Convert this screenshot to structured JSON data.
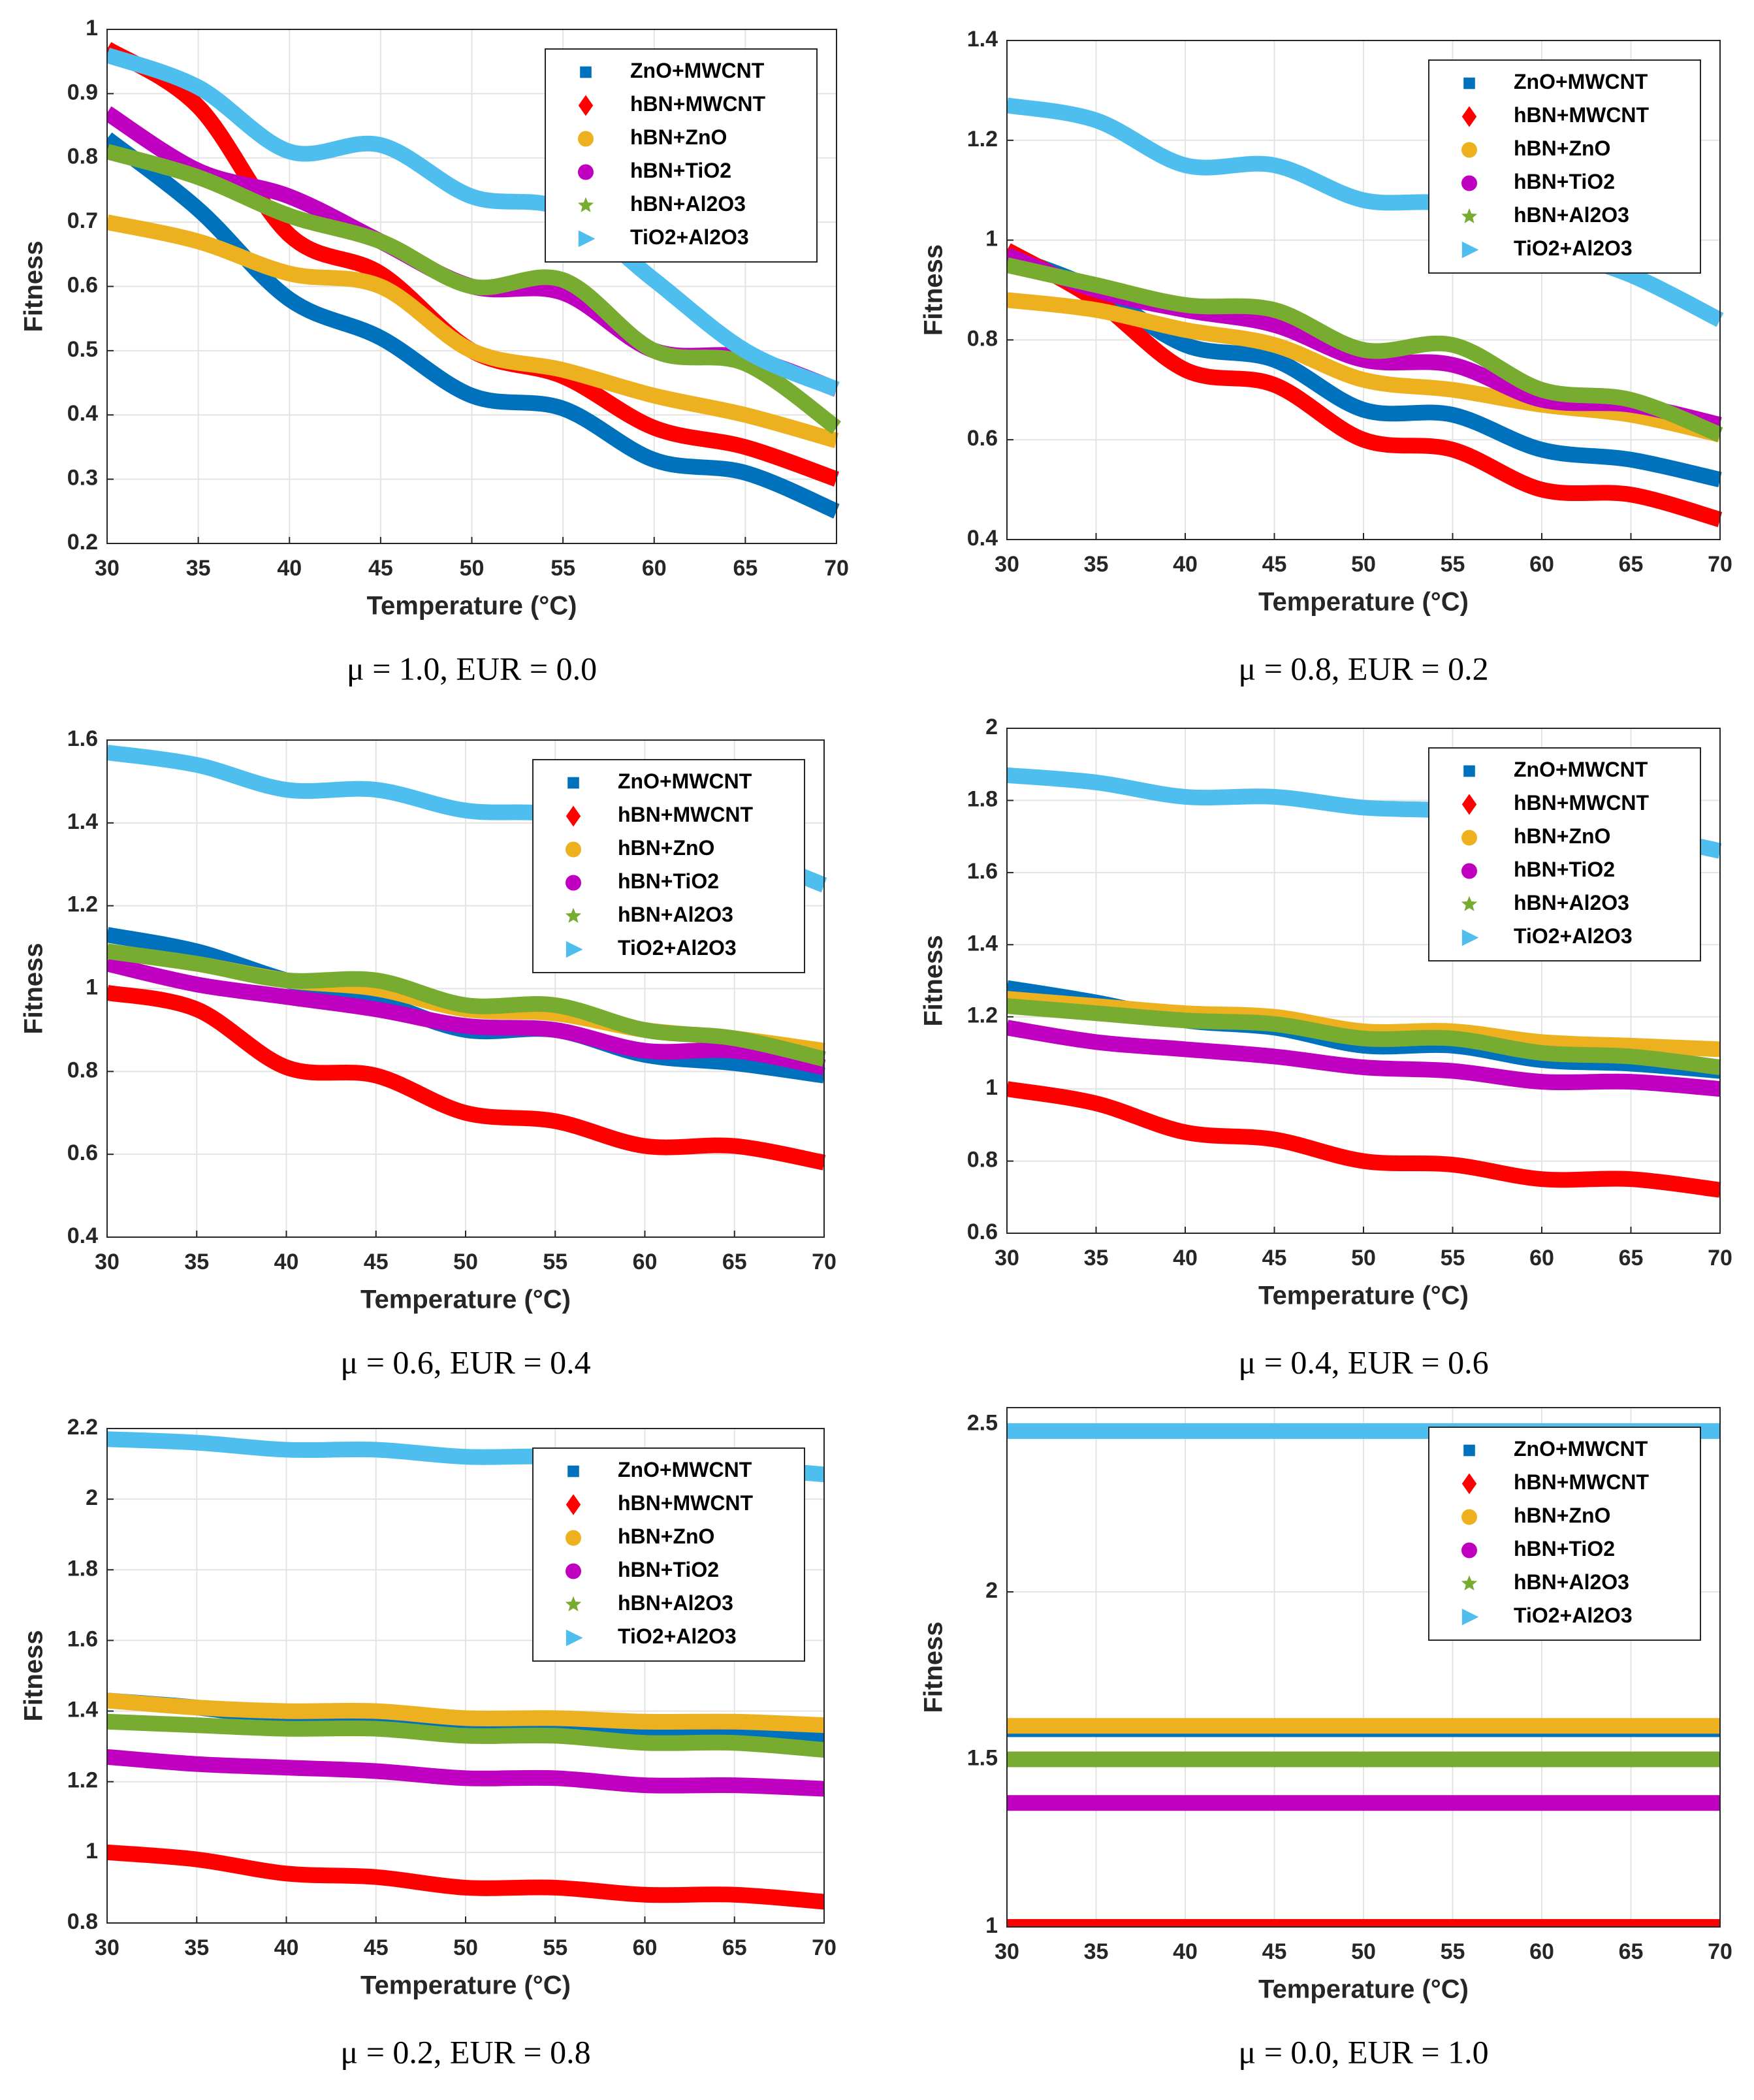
{
  "chart_data": [
    {
      "type": "line",
      "caption": "μ = 1.0, EUR = 0.0",
      "xlabel": "Temperature (°C)",
      "ylabel": "Fitness",
      "x": [
        30,
        35,
        40,
        45,
        50,
        55,
        60,
        65,
        70
      ],
      "xlim": [
        30,
        70
      ],
      "xticks": [
        30,
        35,
        40,
        45,
        50,
        55,
        60,
        65,
        70
      ],
      "ylim": [
        0.2,
        1
      ],
      "yticks": [
        0.2,
        0.3,
        0.4,
        0.5,
        0.6,
        0.7,
        0.8,
        0.9,
        1
      ],
      "grid": true,
      "legend": "upper right",
      "series": [
        {
          "name": "ZnO+MWCNT",
          "color": "#0072BD",
          "marker": "square",
          "values": [
            0.83,
            0.72,
            0.58,
            0.52,
            0.43,
            0.41,
            0.33,
            0.31,
            0.25
          ]
        },
        {
          "name": "hBN+MWCNT",
          "color": "#FF0000",
          "marker": "diamond",
          "values": [
            0.97,
            0.88,
            0.68,
            0.62,
            0.5,
            0.46,
            0.38,
            0.35,
            0.3
          ]
        },
        {
          "name": "hBN+ZnO",
          "color": "#EDB120",
          "marker": "circle",
          "values": [
            0.7,
            0.67,
            0.62,
            0.6,
            0.5,
            0.47,
            0.43,
            0.4,
            0.36
          ]
        },
        {
          "name": "hBN+TiO2",
          "color": "#C000C0",
          "marker": "circle",
          "values": [
            0.87,
            0.78,
            0.74,
            0.67,
            0.6,
            0.59,
            0.5,
            0.49,
            0.44
          ]
        },
        {
          "name": "hBN+Al2O3",
          "color": "#77AC30",
          "marker": "star",
          "values": [
            0.81,
            0.77,
            0.71,
            0.67,
            0.6,
            0.61,
            0.5,
            0.48,
            0.38
          ]
        },
        {
          "name": "TiO2+Al2O3",
          "color": "#4DBEEE",
          "marker": "triangle",
          "values": [
            0.96,
            0.91,
            0.81,
            0.82,
            0.74,
            0.72,
            0.61,
            0.5,
            0.44
          ]
        }
      ]
    },
    {
      "type": "line",
      "caption": "μ = 0.8, EUR = 0.2",
      "xlabel": "Temperature (°C)",
      "ylabel": "Fitness",
      "x": [
        30,
        35,
        40,
        45,
        50,
        55,
        60,
        65,
        70
      ],
      "xlim": [
        30,
        70
      ],
      "xticks": [
        30,
        35,
        40,
        45,
        50,
        55,
        60,
        65,
        70
      ],
      "ylim": [
        0.4,
        1.4
      ],
      "yticks": [
        0.4,
        0.6,
        0.8,
        1,
        1.2,
        1.4
      ],
      "grid": true,
      "legend": "upper right",
      "series": [
        {
          "name": "ZnO+MWCNT",
          "color": "#0072BD",
          "marker": "square",
          "values": [
            0.97,
            0.9,
            0.79,
            0.76,
            0.66,
            0.65,
            0.58,
            0.56,
            0.52
          ]
        },
        {
          "name": "hBN+MWCNT",
          "color": "#FF0000",
          "marker": "diamond",
          "values": [
            0.98,
            0.88,
            0.74,
            0.71,
            0.6,
            0.58,
            0.5,
            0.49,
            0.44
          ]
        },
        {
          "name": "hBN+ZnO",
          "color": "#EDB120",
          "marker": "circle",
          "values": [
            0.88,
            0.86,
            0.82,
            0.79,
            0.72,
            0.7,
            0.67,
            0.65,
            0.61
          ]
        },
        {
          "name": "hBN+TiO2",
          "color": "#C000C0",
          "marker": "circle",
          "values": [
            0.97,
            0.9,
            0.86,
            0.83,
            0.76,
            0.75,
            0.68,
            0.67,
            0.63
          ]
        },
        {
          "name": "hBN+Al2O3",
          "color": "#77AC30",
          "marker": "star",
          "values": [
            0.95,
            0.91,
            0.87,
            0.86,
            0.78,
            0.79,
            0.7,
            0.68,
            0.61
          ]
        },
        {
          "name": "TiO2+Al2O3",
          "color": "#4DBEEE",
          "marker": "triangle",
          "values": [
            1.27,
            1.24,
            1.15,
            1.15,
            1.08,
            1.07,
            0.99,
            0.93,
            0.84
          ]
        }
      ]
    },
    {
      "type": "line",
      "caption": "μ = 0.6, EUR = 0.4",
      "xlabel": "Temperature (°C)",
      "ylabel": "Fitness",
      "x": [
        30,
        35,
        40,
        45,
        50,
        55,
        60,
        65,
        70
      ],
      "xlim": [
        30,
        70
      ],
      "xticks": [
        30,
        35,
        40,
        45,
        50,
        55,
        60,
        65,
        70
      ],
      "ylim": [
        0.4,
        1.6
      ],
      "yticks": [
        0.4,
        0.6,
        0.8,
        1,
        1.2,
        1.4,
        1.6
      ],
      "grid": true,
      "legend": "upper right",
      "series": [
        {
          "name": "ZnO+MWCNT",
          "color": "#0072BD",
          "marker": "square",
          "values": [
            1.13,
            1.09,
            1.02,
            0.97,
            0.9,
            0.9,
            0.84,
            0.82,
            0.79
          ]
        },
        {
          "name": "hBN+MWCNT",
          "color": "#FF0000",
          "marker": "diamond",
          "values": [
            0.99,
            0.95,
            0.81,
            0.79,
            0.7,
            0.68,
            0.62,
            0.62,
            0.58
          ]
        },
        {
          "name": "hBN+ZnO",
          "color": "#EDB120",
          "marker": "circle",
          "values": [
            1.09,
            1.06,
            1.02,
            1,
            0.95,
            0.94,
            0.9,
            0.88,
            0.85
          ]
        },
        {
          "name": "hBN+TiO2",
          "color": "#C000C0",
          "marker": "circle",
          "values": [
            1.06,
            1.01,
            0.98,
            0.95,
            0.91,
            0.9,
            0.85,
            0.85,
            0.81
          ]
        },
        {
          "name": "hBN+Al2O3",
          "color": "#77AC30",
          "marker": "star",
          "values": [
            1.09,
            1.06,
            1.02,
            1.02,
            0.96,
            0.96,
            0.9,
            0.88,
            0.83
          ]
        },
        {
          "name": "TiO2+Al2O3",
          "color": "#4DBEEE",
          "marker": "triangle",
          "values": [
            1.57,
            1.54,
            1.48,
            1.48,
            1.43,
            1.42,
            1.36,
            1.33,
            1.25
          ]
        }
      ]
    },
    {
      "type": "line",
      "caption": "μ = 0.4, EUR = 0.6",
      "xlabel": "Temperature (°C)",
      "ylabel": "Fitness",
      "x": [
        30,
        35,
        40,
        45,
        50,
        55,
        60,
        65,
        70
      ],
      "xlim": [
        30,
        70
      ],
      "xticks": [
        30,
        35,
        40,
        45,
        50,
        55,
        60,
        65,
        70
      ],
      "ylim": [
        0.6,
        2
      ],
      "yticks": [
        0.6,
        0.8,
        1,
        1.2,
        1.4,
        1.6,
        1.8,
        2
      ],
      "grid": true,
      "legend": "upper right",
      "series": [
        {
          "name": "ZnO+MWCNT",
          "color": "#0072BD",
          "marker": "square",
          "values": [
            1.28,
            1.24,
            1.19,
            1.17,
            1.12,
            1.12,
            1.08,
            1.07,
            1.05
          ]
        },
        {
          "name": "hBN+MWCNT",
          "color": "#FF0000",
          "marker": "diamond",
          "values": [
            1,
            0.96,
            0.88,
            0.86,
            0.8,
            0.79,
            0.75,
            0.75,
            0.72
          ]
        },
        {
          "name": "hBN+ZnO",
          "color": "#EDB120",
          "marker": "circle",
          "values": [
            1.25,
            1.23,
            1.21,
            1.2,
            1.16,
            1.16,
            1.13,
            1.12,
            1.11
          ]
        },
        {
          "name": "hBN+TiO2",
          "color": "#C000C0",
          "marker": "circle",
          "values": [
            1.17,
            1.13,
            1.11,
            1.09,
            1.06,
            1.05,
            1.02,
            1.02,
            1
          ]
        },
        {
          "name": "hBN+Al2O3",
          "color": "#77AC30",
          "marker": "star",
          "values": [
            1.23,
            1.21,
            1.19,
            1.18,
            1.14,
            1.14,
            1.1,
            1.09,
            1.06
          ]
        },
        {
          "name": "TiO2+Al2O3",
          "color": "#4DBEEE",
          "marker": "triangle",
          "values": [
            1.87,
            1.85,
            1.81,
            1.81,
            1.78,
            1.77,
            1.73,
            1.71,
            1.66
          ]
        }
      ]
    },
    {
      "type": "line",
      "caption": "μ = 0.2, EUR = 0.8",
      "xlabel": "Temperature (°C)",
      "ylabel": "Fitness",
      "x": [
        30,
        35,
        40,
        45,
        50,
        55,
        60,
        65,
        70
      ],
      "xlim": [
        30,
        70
      ],
      "xticks": [
        30,
        35,
        40,
        45,
        50,
        55,
        60,
        65,
        70
      ],
      "ylim": [
        0.8,
        2.2
      ],
      "yticks": [
        0.8,
        1,
        1.2,
        1.4,
        1.6,
        1.8,
        2,
        2.2
      ],
      "grid": true,
      "legend": "upper right",
      "series": [
        {
          "name": "ZnO+MWCNT",
          "color": "#0072BD",
          "marker": "square",
          "values": [
            1.43,
            1.41,
            1.38,
            1.37,
            1.35,
            1.35,
            1.33,
            1.33,
            1.32
          ]
        },
        {
          "name": "hBN+MWCNT",
          "color": "#FF0000",
          "marker": "diamond",
          "values": [
            1,
            0.98,
            0.94,
            0.93,
            0.9,
            0.9,
            0.88,
            0.88,
            0.86
          ]
        },
        {
          "name": "hBN+ZnO",
          "color": "#EDB120",
          "marker": "circle",
          "values": [
            1.43,
            1.41,
            1.4,
            1.4,
            1.38,
            1.38,
            1.37,
            1.37,
            1.36
          ]
        },
        {
          "name": "hBN+TiO2",
          "color": "#C000C0",
          "marker": "circle",
          "values": [
            1.27,
            1.25,
            1.24,
            1.23,
            1.21,
            1.21,
            1.19,
            1.19,
            1.18
          ]
        },
        {
          "name": "hBN+Al2O3",
          "color": "#77AC30",
          "marker": "star",
          "values": [
            1.37,
            1.36,
            1.35,
            1.35,
            1.33,
            1.33,
            1.31,
            1.31,
            1.29
          ]
        },
        {
          "name": "TiO2+Al2O3",
          "color": "#4DBEEE",
          "marker": "triangle",
          "values": [
            2.17,
            2.16,
            2.14,
            2.14,
            2.12,
            2.12,
            2.1,
            2.09,
            2.07
          ]
        }
      ]
    },
    {
      "type": "line",
      "caption": "μ = 0.0, EUR = 1.0",
      "xlabel": "Temperature (°C)",
      "ylabel": "Fitness",
      "x": [
        30,
        35,
        40,
        45,
        50,
        55,
        60,
        65,
        70
      ],
      "xlim": [
        30,
        70
      ],
      "xticks": [
        30,
        35,
        40,
        45,
        50,
        55,
        60,
        65,
        70
      ],
      "ylim": [
        1,
        2.55
      ],
      "yticks": [
        1,
        1.5,
        2,
        2.5
      ],
      "grid": true,
      "legend": "upper right",
      "series": [
        {
          "name": "ZnO+MWCNT",
          "color": "#0072BD",
          "marker": "square",
          "values": [
            1.59,
            1.59,
            1.59,
            1.59,
            1.59,
            1.59,
            1.59,
            1.59,
            1.59
          ]
        },
        {
          "name": "hBN+MWCNT",
          "color": "#FF0000",
          "marker": "diamond",
          "values": [
            1,
            1,
            1,
            1,
            1,
            1,
            1,
            1,
            1
          ]
        },
        {
          "name": "hBN+ZnO",
          "color": "#EDB120",
          "marker": "circle",
          "values": [
            1.6,
            1.6,
            1.6,
            1.6,
            1.6,
            1.6,
            1.6,
            1.6,
            1.6
          ]
        },
        {
          "name": "hBN+TiO2",
          "color": "#C000C0",
          "marker": "circle",
          "values": [
            1.37,
            1.37,
            1.37,
            1.37,
            1.37,
            1.37,
            1.37,
            1.37,
            1.37
          ]
        },
        {
          "name": "hBN+Al2O3",
          "color": "#77AC30",
          "marker": "star",
          "values": [
            1.5,
            1.5,
            1.5,
            1.5,
            1.5,
            1.5,
            1.5,
            1.5,
            1.5
          ]
        },
        {
          "name": "TiO2+Al2O3",
          "color": "#4DBEEE",
          "marker": "triangle",
          "values": [
            2.48,
            2.48,
            2.48,
            2.48,
            2.48,
            2.48,
            2.48,
            2.48,
            2.48
          ]
        }
      ]
    }
  ]
}
